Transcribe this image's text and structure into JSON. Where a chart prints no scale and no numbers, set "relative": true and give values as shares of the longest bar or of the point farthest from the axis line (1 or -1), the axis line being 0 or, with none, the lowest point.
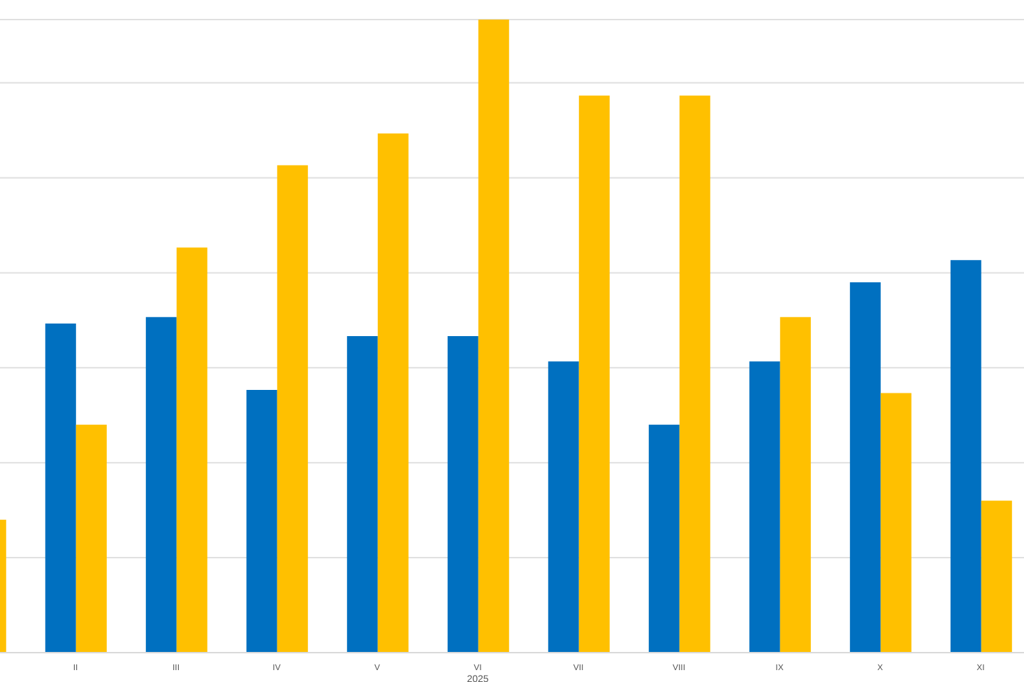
{
  "chart_data": {
    "type": "bar",
    "xlabel": "2025",
    "relative": true,
    "grid": "y",
    "categories": [
      null,
      "II",
      "III",
      "IV",
      "V",
      "VI",
      "VII",
      "VIII",
      "IX",
      "X",
      "XI"
    ],
    "series": [
      {
        "color": "#0070c0",
        "values": [
          null,
          0.52,
          0.53,
          0.415,
          0.5,
          0.5,
          0.46,
          0.36,
          0.46,
          0.585,
          0.62
        ]
      },
      {
        "color": "#ffc000",
        "values": [
          0.21,
          0.36,
          0.64,
          0.77,
          0.82,
          1,
          0.88,
          0.88,
          0.53,
          0.41,
          0.24
        ]
      }
    ]
  }
}
